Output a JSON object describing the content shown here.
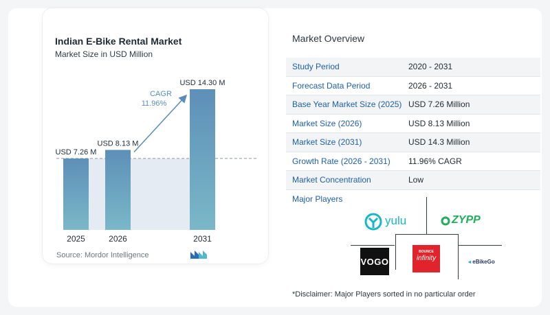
{
  "chart_data": {
    "type": "bar",
    "title": "Indian E-Bike Rental Market",
    "subtitle": "Market Size in USD Million",
    "categories": [
      "2025",
      "2026",
      "2031"
    ],
    "values": [
      7.26,
      8.13,
      14.3
    ],
    "data_labels": [
      "USD 7.26 M",
      "USD 8.13 M",
      "USD 14.30 M"
    ],
    "annotation": {
      "label": "CAGR",
      "value": "11.96%"
    },
    "reference_line": 7.26,
    "ylim": [
      0,
      14.3
    ],
    "colors": {
      "bar_top": "#5e8fb8",
      "bar_bottom": "#7ab8c8",
      "shade": "#e4ebf3",
      "arrow": "#5a8cb8",
      "cagr_text": "#5a8cb8"
    }
  },
  "source": "Source:  Mordor Intelligence",
  "overview": {
    "title": "Market Overview",
    "rows": [
      {
        "label": "Study Period",
        "value": "2020 - 2031"
      },
      {
        "label": "Forecast Data Period",
        "value": "2026 - 2031"
      },
      {
        "label": "Base Year Market Size (2025)",
        "value": "USD 7.26 Million"
      },
      {
        "label": "Market Size (2026)",
        "value": "USD 8.13 Million"
      },
      {
        "label": "Market Size (2031)",
        "value": "USD 14.3 Million"
      },
      {
        "label": "Growth Rate (2026 - 2031)",
        "value": "11.96% CAGR"
      },
      {
        "label": "Market Concentration",
        "value": "Low"
      }
    ]
  },
  "players": {
    "title": "Major Players",
    "logos": {
      "yulu": "yulu",
      "zypp": "ZYPP",
      "vogo": "VOGO",
      "bounce_top": "BOUNCE",
      "bounce_main": "infinity",
      "ebikego": "eBikeGo"
    }
  },
  "disclaimer": "*Disclaimer: Major Players sorted in no particular order"
}
